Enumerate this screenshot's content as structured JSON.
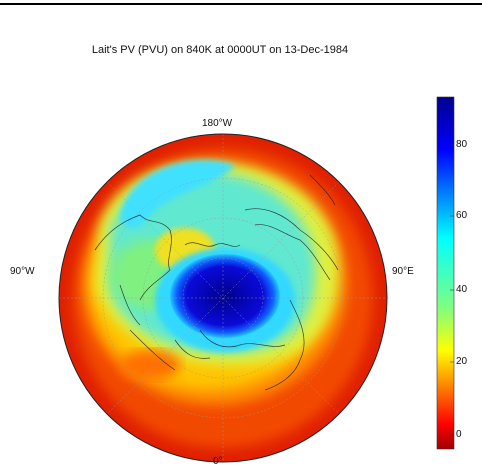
{
  "map": {
    "title": "Lait's PV (PVU) on 840K at 0000UT on 13-Dec-1984",
    "projection": "north-polar-stereographic",
    "longitude_labels": {
      "top": "180°W",
      "left": "90°W",
      "right": "90°E",
      "bottom": "0°"
    },
    "colormap": "jet-like (dark red → red → yellow → cyan → blue → dark blue)",
    "features": [
      "coastlines",
      "country borders",
      "latitude/longitude graticule"
    ]
  },
  "colorbar": {
    "ticks": [
      "80",
      "60",
      "40",
      "20",
      "0"
    ],
    "colors": [
      "#00008f",
      "#0000ff",
      "#00ffff",
      "#ffff00",
      "#ff0000",
      "#800000"
    ]
  }
}
